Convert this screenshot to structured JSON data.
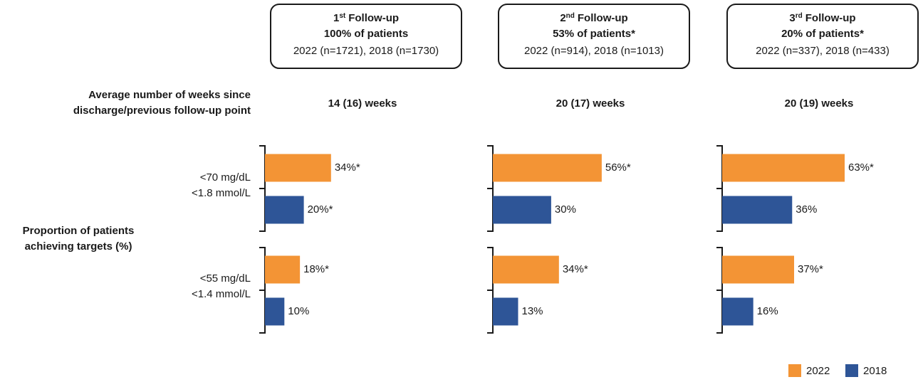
{
  "chart_data": {
    "type": "bar",
    "orientation": "horizontal",
    "weeks_label": [
      "Average number of weeks since",
      "discharge/previous follow-up point"
    ],
    "row_title": [
      "Proportion of patients",
      "achieving targets (%)"
    ],
    "row_labels": [
      [
        "<70 mg/dL",
        "<1.8 mmol/L"
      ],
      [
        "<55 mg/dL",
        "<1.4 mmol/L"
      ]
    ],
    "series": [
      {
        "name": "2022",
        "color": "#f39435"
      },
      {
        "name": "2018",
        "color": "#2e5597"
      }
    ],
    "panels": [
      {
        "number": "1",
        "sup": "st",
        "title": "Follow-up",
        "share": "100% of patients",
        "sample": "2022 (n=1721), 2018 (n=1730)",
        "weeks": "14 (16) weeks",
        "groups": [
          {
            "values": [
              34,
              20
            ],
            "value_labels": [
              "34%*",
              "20%*"
            ]
          },
          {
            "values": [
              18,
              10
            ],
            "value_labels": [
              "18%*",
              "10%"
            ]
          }
        ]
      },
      {
        "number": "2",
        "sup": "nd",
        "title": "Follow-up",
        "share": "53% of patients*",
        "sample": "2022 (n=914), 2018 (n=1013)",
        "weeks": "20 (17) weeks",
        "groups": [
          {
            "values": [
              56,
              30
            ],
            "value_labels": [
              "56%*",
              "30%"
            ]
          },
          {
            "values": [
              34,
              13
            ],
            "value_labels": [
              "34%*",
              "13%"
            ]
          }
        ]
      },
      {
        "number": "3",
        "sup": "rd",
        "title": "Follow-up",
        "share": "20% of patients*",
        "sample": "2022 (n=337), 2018 (n=433)",
        "weeks": "20 (19) weeks",
        "groups": [
          {
            "values": [
              63,
              36
            ],
            "value_labels": [
              "63%*",
              "36%"
            ]
          },
          {
            "values": [
              37,
              16
            ],
            "value_labels": [
              "37%*",
              "16%"
            ]
          }
        ]
      }
    ]
  }
}
